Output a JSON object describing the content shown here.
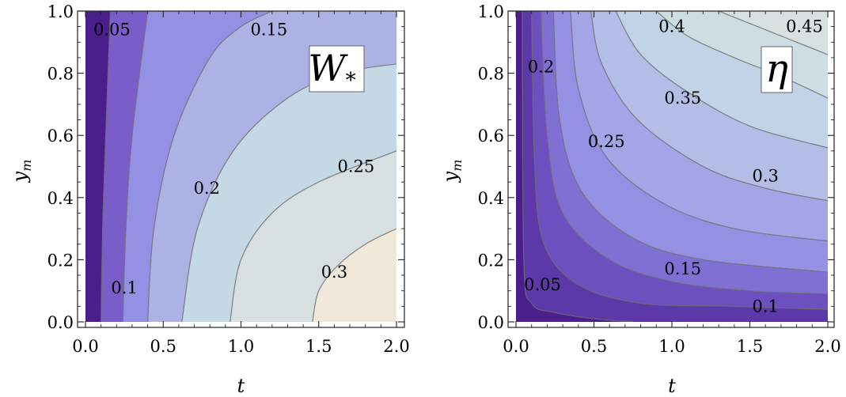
{
  "chart_data": [
    {
      "type": "contour",
      "panel_label": "W",
      "panel_label_sub": "*",
      "xlabel": "t",
      "ylabel": "y",
      "ylabel_sub": "m",
      "xlim": [
        0,
        2
      ],
      "ylim": [
        0,
        1
      ],
      "xticks": [
        "0.0",
        "0.5",
        "1.0",
        "1.5",
        "2.0"
      ],
      "yticks": [
        "0.0",
        "0.2",
        "0.4",
        "0.6",
        "0.8",
        "1.0"
      ],
      "colors": [
        "#4a1f8c",
        "#7a5dc9",
        "#9490e3",
        "#adb2e5",
        "#c4d8e6",
        "#d7dfe0",
        "#f0e8d8"
      ],
      "contours": [
        {
          "level": 0.05,
          "points": [
            [
              0.1,
              0
            ],
            [
              0.11,
              0.3
            ],
            [
              0.13,
              0.6
            ],
            [
              0.16,
              1.0
            ]
          ]
        },
        {
          "level": 0.1,
          "points": [
            [
              0.24,
              0
            ],
            [
              0.26,
              0.3
            ],
            [
              0.3,
              0.6
            ],
            [
              0.4,
              1.0
            ]
          ]
        },
        {
          "level": 0.15,
          "points": [
            [
              0.4,
              0
            ],
            [
              0.44,
              0.3
            ],
            [
              0.57,
              0.6
            ],
            [
              0.8,
              0.85
            ],
            [
              1.0,
              0.95
            ],
            [
              1.2,
              1.0
            ]
          ]
        },
        {
          "level": 0.2,
          "points": [
            [
              0.62,
              0
            ],
            [
              0.72,
              0.3
            ],
            [
              0.95,
              0.55
            ],
            [
              1.3,
              0.72
            ],
            [
              1.65,
              0.8
            ],
            [
              2.0,
              0.83
            ]
          ]
        },
        {
          "level": 0.25,
          "points": [
            [
              0.93,
              0
            ],
            [
              1.0,
              0.2
            ],
            [
              1.2,
              0.35
            ],
            [
              1.5,
              0.45
            ],
            [
              2.0,
              0.55
            ]
          ]
        },
        {
          "level": 0.3,
          "points": [
            [
              1.46,
              0
            ],
            [
              1.5,
              0.1
            ],
            [
              1.62,
              0.18
            ],
            [
              1.8,
              0.25
            ],
            [
              2.0,
              0.3
            ]
          ]
        }
      ],
      "labels": [
        {
          "text": "0.05",
          "x": 0.17,
          "y": 0.94
        },
        {
          "text": "0.1",
          "x": 0.25,
          "y": 0.11
        },
        {
          "text": "0.15",
          "x": 1.18,
          "y": 0.94
        },
        {
          "text": "0.2",
          "x": 0.78,
          "y": 0.43
        },
        {
          "text": "0.25",
          "x": 1.74,
          "y": 0.5
        },
        {
          "text": "0.3",
          "x": 1.6,
          "y": 0.16
        }
      ]
    },
    {
      "type": "contour",
      "panel_label": "η",
      "panel_label_sub": "",
      "xlabel": "t",
      "ylabel": "y",
      "ylabel_sub": "m",
      "xlim": [
        0,
        2
      ],
      "ylim": [
        0,
        1
      ],
      "xticks": [
        "0.0",
        "0.5",
        "1.0",
        "1.5",
        "2.0"
      ],
      "yticks": [
        "0.0",
        "0.2",
        "0.4",
        "0.6",
        "0.8",
        "1.0"
      ],
      "colors": [
        "#4a1f8c",
        "#5c38a8",
        "#6e4fbf",
        "#8070d4",
        "#9490e3",
        "#a4a5e6",
        "#b3bde6",
        "#c1d3e6",
        "#ccdde3",
        "#d9e0e0",
        "#e2e2da",
        "#f0e8d8"
      ],
      "contours": [
        {
          "level": 0.05,
          "points": [
            [
              0.04,
              1.0
            ],
            [
              0.05,
              0.2
            ],
            [
              0.1,
              0.06
            ],
            [
              0.25,
              0.03
            ],
            [
              0.5,
              0.01
            ],
            [
              0.75,
              0.0
            ]
          ]
        },
        {
          "level": 0.1,
          "points": [
            [
              0.1,
              1.0
            ],
            [
              0.12,
              0.5
            ],
            [
              0.18,
              0.25
            ],
            [
              0.4,
              0.12
            ],
            [
              0.8,
              0.06
            ],
            [
              1.4,
              0.05
            ],
            [
              2.0,
              0.04
            ]
          ]
        },
        {
          "level": 0.15,
          "points": [
            [
              0.16,
              1.0
            ],
            [
              0.2,
              0.6
            ],
            [
              0.3,
              0.35
            ],
            [
              0.6,
              0.2
            ],
            [
              1.0,
              0.13
            ],
            [
              1.5,
              0.1
            ],
            [
              2.0,
              0.09
            ]
          ]
        },
        {
          "level": 0.2,
          "points": [
            [
              0.24,
              1.0
            ],
            [
              0.28,
              0.65
            ],
            [
              0.42,
              0.42
            ],
            [
              0.75,
              0.27
            ],
            [
              1.2,
              0.2
            ],
            [
              2.0,
              0.16
            ]
          ]
        },
        {
          "level": 0.25,
          "points": [
            [
              0.35,
              1.0
            ],
            [
              0.4,
              0.75
            ],
            [
              0.58,
              0.53
            ],
            [
              0.95,
              0.38
            ],
            [
              1.4,
              0.3
            ],
            [
              2.0,
              0.26
            ]
          ]
        },
        {
          "level": 0.3,
          "points": [
            [
              0.48,
              1.0
            ],
            [
              0.55,
              0.83
            ],
            [
              0.78,
              0.65
            ],
            [
              1.2,
              0.5
            ],
            [
              1.6,
              0.43
            ],
            [
              2.0,
              0.39
            ]
          ]
        },
        {
          "level": 0.35,
          "points": [
            [
              0.64,
              1.0
            ],
            [
              0.8,
              0.86
            ],
            [
              1.1,
              0.74
            ],
            [
              1.5,
              0.63
            ],
            [
              2.0,
              0.56
            ]
          ]
        },
        {
          "level": 0.4,
          "points": [
            [
              0.9,
              1.0
            ],
            [
              1.1,
              0.92
            ],
            [
              1.4,
              0.85
            ],
            [
              1.7,
              0.79
            ],
            [
              2.0,
              0.72
            ]
          ]
        },
        {
          "level": 0.45,
          "points": [
            [
              1.3,
              1.0
            ],
            [
              1.5,
              0.96
            ],
            [
              1.75,
              0.91
            ],
            [
              2.0,
              0.86
            ]
          ]
        }
      ],
      "labels": [
        {
          "text": "0.05",
          "x": 0.17,
          "y": 0.12
        },
        {
          "text": "0.1",
          "x": 1.6,
          "y": 0.05
        },
        {
          "text": "0.15",
          "x": 1.07,
          "y": 0.17
        },
        {
          "text": "0.2",
          "x": 0.16,
          "y": 0.82
        },
        {
          "text": "0.25",
          "x": 0.58,
          "y": 0.58
        },
        {
          "text": "0.3",
          "x": 1.6,
          "y": 0.47
        },
        {
          "text": "0.35",
          "x": 1.07,
          "y": 0.72
        },
        {
          "text": "0.4",
          "x": 1.0,
          "y": 0.95
        },
        {
          "text": "0.45",
          "x": 1.85,
          "y": 0.95
        }
      ]
    }
  ]
}
